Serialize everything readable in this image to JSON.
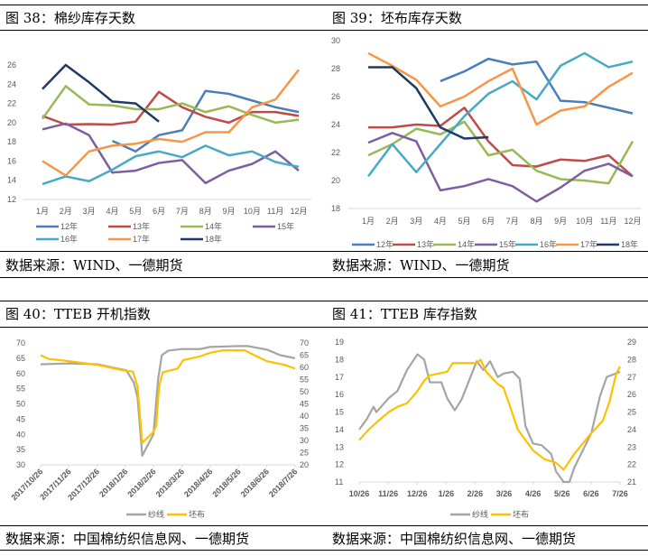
{
  "panels": [
    {
      "title": "图 38：棉纱库存天数",
      "source": "数据来源：WIND、一德期货"
    },
    {
      "title": "图 39：坯布库存天数",
      "source": "数据来源：WIND、一德期货"
    },
    {
      "title": "图 40：TTEB 开机指数",
      "source": "数据来源：中国棉纺织信息网、一德期货"
    },
    {
      "title": "图 41：TTEB 库存指数",
      "source": "数据来源：中国棉纺织信息网、一德期货"
    }
  ],
  "chart_data": [
    {
      "type": "line",
      "categories": [
        "1月",
        "2月",
        "3月",
        "4月",
        "5月",
        "6月",
        "7月",
        "8月",
        "9月",
        "10月",
        "11月",
        "12月"
      ],
      "ylim": [
        12,
        26
      ],
      "yticks": [
        12,
        14,
        16,
        18,
        20,
        22,
        24,
        26
      ],
      "legend": "bottom",
      "grid": false,
      "series": [
        {
          "name": "12年",
          "color": "#4a7ebb",
          "values": [
            null,
            null,
            null,
            18.1,
            17.0,
            18.7,
            19.2,
            23.3,
            23.0,
            22.3,
            21.6,
            21.1
          ]
        },
        {
          "name": "13年",
          "color": "#be4b48",
          "values": [
            20.7,
            19.8,
            19.85,
            19.8,
            20.1,
            23.2,
            21.6,
            20.6,
            20.0,
            21.1,
            21.1,
            20.7
          ]
        },
        {
          "name": "14年",
          "color": "#98b954",
          "values": [
            20.4,
            23.8,
            21.9,
            21.8,
            21.4,
            21.4,
            22.0,
            21.1,
            21.7,
            20.8,
            20.0,
            20.3
          ]
        },
        {
          "name": "15年",
          "color": "#7d5fa0",
          "values": [
            19.3,
            19.9,
            18.7,
            14.8,
            15.0,
            15.8,
            16.1,
            13.7,
            15.0,
            15.7,
            17.0,
            15.0
          ]
        },
        {
          "name": "16年",
          "color": "#46aac5",
          "values": [
            13.6,
            14.4,
            13.9,
            15.1,
            16.5,
            17.0,
            16.4,
            17.6,
            16.6,
            17.0,
            15.9,
            15.4
          ]
        },
        {
          "name": "17年",
          "color": "#f79646",
          "values": [
            16.0,
            14.5,
            17.0,
            17.6,
            17.8,
            18.3,
            18.0,
            19.0,
            19.0,
            21.6,
            22.4,
            25.5
          ]
        },
        {
          "name": "18年",
          "color": "#1f3864",
          "values": [
            23.5,
            26.0,
            24.2,
            22.2,
            22.0,
            20.1,
            null,
            null,
            null,
            null,
            null,
            null
          ]
        }
      ]
    },
    {
      "type": "line",
      "categories": [
        "1月",
        "2月",
        "3月",
        "4月",
        "5月",
        "6月",
        "7月",
        "8月",
        "9月",
        "10月",
        "11月",
        "12月"
      ],
      "ylim": [
        18,
        30
      ],
      "yticks": [
        18,
        20,
        22,
        24,
        26,
        28,
        30
      ],
      "legend": "bottom",
      "grid": false,
      "series": [
        {
          "name": "12年",
          "color": "#4a7ebb",
          "values": [
            null,
            null,
            null,
            27.1,
            27.8,
            28.7,
            28.3,
            28.5,
            25.7,
            25.6,
            25.2,
            24.8
          ]
        },
        {
          "name": "13年",
          "color": "#be4b48",
          "values": [
            23.8,
            23.8,
            24.0,
            23.9,
            25.2,
            22.8,
            21.1,
            21.0,
            21.5,
            21.4,
            21.8,
            20.3
          ]
        },
        {
          "name": "14年",
          "color": "#98b954",
          "values": [
            21.8,
            22.6,
            23.7,
            23.3,
            24.2,
            21.8,
            22.2,
            20.7,
            20.1,
            20.0,
            19.8,
            22.8
          ]
        },
        {
          "name": "15年",
          "color": "#7d5fa0",
          "values": [
            22.7,
            23.4,
            22.8,
            19.3,
            19.6,
            20.1,
            19.6,
            18.5,
            19.5,
            20.7,
            21.2,
            20.3
          ]
        },
        {
          "name": "16年",
          "color": "#46aac5",
          "values": [
            20.3,
            22.6,
            20.6,
            22.6,
            24.6,
            26.2,
            27.1,
            25.8,
            28.2,
            29.1,
            28.1,
            28.5
          ]
        },
        {
          "name": "17年",
          "color": "#f79646",
          "values": [
            29.1,
            28.2,
            27.2,
            25.3,
            26.0,
            27.1,
            28.0,
            24.0,
            25.0,
            25.3,
            26.7,
            27.7
          ]
        },
        {
          "name": "18年",
          "color": "#1f3864",
          "values": [
            28.1,
            28.1,
            26.6,
            23.8,
            23.0,
            23.1,
            null,
            null,
            null,
            null,
            null,
            null
          ]
        }
      ]
    },
    {
      "type": "line",
      "xticks": [
        "2017/10/26",
        "2017/11/26",
        "2017/12/26",
        "2018/1/26",
        "2018/2/26",
        "2018/3/26",
        "2018/4/26",
        "2018/5/26",
        "2018/6/26",
        "2018/7/26"
      ],
      "ylim_left": [
        30,
        70
      ],
      "yticks_left": [
        30,
        35,
        40,
        45,
        50,
        55,
        60,
        65,
        70
      ],
      "ylim_right": [
        20,
        70
      ],
      "yticks_right": [
        20,
        25,
        30,
        35,
        40,
        45,
        50,
        55,
        60,
        65,
        70
      ],
      "legend": "bottom",
      "grid": false,
      "series": [
        {
          "name": "纱线",
          "color": "#a5a5a5",
          "axis": "left",
          "points": [
            [
              "2017/10/26",
              63
            ],
            [
              "2017/11/26",
              63.3
            ],
            [
              "2017/12/26",
              63
            ],
            [
              "2018/1/26",
              61
            ],
            [
              "2018/2/3",
              57
            ],
            [
              "2018/2/7",
              52
            ],
            [
              "2018/2/12",
              33
            ],
            [
              "2018/2/24",
              40
            ],
            [
              "2018/3/1",
              58
            ],
            [
              "2018/3/5",
              66
            ],
            [
              "2018/3/12",
              67.5
            ],
            [
              "2018/3/26",
              68
            ],
            [
              "2018/4/15",
              68
            ],
            [
              "2018/4/26",
              68.7
            ],
            [
              "2018/5/26",
              69
            ],
            [
              "2018/6/5",
              69
            ],
            [
              "2018/6/26",
              67.8
            ],
            [
              "2018/7/10",
              66
            ],
            [
              "2018/7/26",
              65
            ]
          ]
        },
        {
          "name": "坯布",
          "color": "#ffc000",
          "axis": "right",
          "points": [
            [
              "2017/10/26",
              65
            ],
            [
              "2017/11/3",
              63.5
            ],
            [
              "2017/11/26",
              62.5
            ],
            [
              "2017/12/26",
              61
            ],
            [
              "2018/1/26",
              58.5
            ],
            [
              "2018/2/2",
              58.3
            ],
            [
              "2018/2/7",
              52
            ],
            [
              "2018/2/12",
              29
            ],
            [
              "2018/2/24",
              33.5
            ],
            [
              "2018/2/27",
              36
            ],
            [
              "2018/3/2",
              52
            ],
            [
              "2018/3/6",
              58
            ],
            [
              "2018/3/22",
              59.5
            ],
            [
              "2018/3/28",
              63
            ],
            [
              "2018/4/15",
              64.5
            ],
            [
              "2018/4/26",
              66
            ],
            [
              "2018/5/10",
              67
            ],
            [
              "2018/6/2",
              67
            ],
            [
              "2018/6/15",
              64.5
            ],
            [
              "2018/6/26",
              62.5
            ],
            [
              "2018/7/15",
              61
            ],
            [
              "2018/7/26",
              59.5
            ]
          ]
        }
      ]
    },
    {
      "type": "line",
      "xticks": [
        "10/26",
        "11/26",
        "12/26",
        "1/26",
        "2/26",
        "3/26",
        "4/26",
        "5/26",
        "6/26",
        "7/26"
      ],
      "ylim_left": [
        11,
        19
      ],
      "yticks_left": [
        11,
        12,
        13,
        14,
        15,
        16,
        17,
        18,
        19
      ],
      "ylim_right": [
        21,
        29
      ],
      "yticks_right": [
        21,
        22,
        23,
        24,
        25,
        26,
        27,
        28,
        29
      ],
      "legend": "bottom",
      "grid": false,
      "series": [
        {
          "name": "纱线",
          "color": "#a5a5a5",
          "axis": "left",
          "points": [
            [
              "2017/10/26",
              14
            ],
            [
              "2017/11/3",
              14.6
            ],
            [
              "2017/11/10",
              15.3
            ],
            [
              "2017/11/13",
              15.0
            ],
            [
              "2017/11/26",
              15.8
            ],
            [
              "2017/12/5",
              16.2
            ],
            [
              "2017/12/15",
              17.4
            ],
            [
              "2017/12/26",
              18.3
            ],
            [
              "2018/1/2",
              18.0
            ],
            [
              "2018/1/8",
              16.7
            ],
            [
              "2018/1/20",
              16.7
            ],
            [
              "2018/1/26",
              15.8
            ],
            [
              "2018/2/3",
              15.1
            ],
            [
              "2018/2/10",
              15.7
            ],
            [
              "2018/2/26",
              17.9
            ],
            [
              "2018/3/5",
              17.4
            ],
            [
              "2018/3/12",
              17.9
            ],
            [
              "2018/3/20",
              17.0
            ],
            [
              "2018/3/26",
              17.2
            ],
            [
              "2018/4/5",
              17.3
            ],
            [
              "2018/4/12",
              16.9
            ],
            [
              "2018/4/18",
              14.2
            ],
            [
              "2018/4/26",
              13.2
            ],
            [
              "2018/5/5",
              13.1
            ],
            [
              "2018/5/15",
              12.6
            ],
            [
              "2018/5/20",
              11.6
            ],
            [
              "2018/5/28",
              11.0
            ],
            [
              "2018/6/3",
              11.0
            ],
            [
              "2018/6/8",
              11.8
            ],
            [
              "2018/6/26",
              13.8
            ],
            [
              "2018/7/5",
              15.9
            ],
            [
              "2018/7/12",
              17.0
            ],
            [
              "2018/7/26",
              17.3
            ]
          ]
        },
        {
          "name": "坯布",
          "color": "#ffc000",
          "axis": "right",
          "points": [
            [
              "2017/10/26",
              23.4
            ],
            [
              "2017/11/5",
              24.0
            ],
            [
              "2017/11/15",
              24.5
            ],
            [
              "2017/11/26",
              25.0
            ],
            [
              "2017/12/5",
              25.3
            ],
            [
              "2017/12/15",
              25.5
            ],
            [
              "2017/12/26",
              26.2
            ],
            [
              "2018/1/2",
              26.8
            ],
            [
              "2018/1/8",
              27.1
            ],
            [
              "2018/1/26",
              27.3
            ],
            [
              "2018/2/1",
              27.8
            ],
            [
              "2018/2/26",
              27.8
            ],
            [
              "2018/3/2",
              28.0
            ],
            [
              "2018/3/8",
              27.3
            ],
            [
              "2018/3/20",
              26.6
            ],
            [
              "2018/3/26",
              26.4
            ],
            [
              "2018/4/2",
              25.3
            ],
            [
              "2018/4/10",
              24.0
            ],
            [
              "2018/4/26",
              22.8
            ],
            [
              "2018/5/8",
              22.3
            ],
            [
              "2018/5/20",
              22.1
            ],
            [
              "2018/5/28",
              21.7
            ],
            [
              "2018/6/8",
              22.6
            ],
            [
              "2018/6/26",
              23.8
            ],
            [
              "2018/7/8",
              24.5
            ],
            [
              "2018/7/15",
              25.6
            ],
            [
              "2018/7/22",
              27.2
            ],
            [
              "2018/7/26",
              27.6
            ]
          ]
        }
      ]
    }
  ]
}
